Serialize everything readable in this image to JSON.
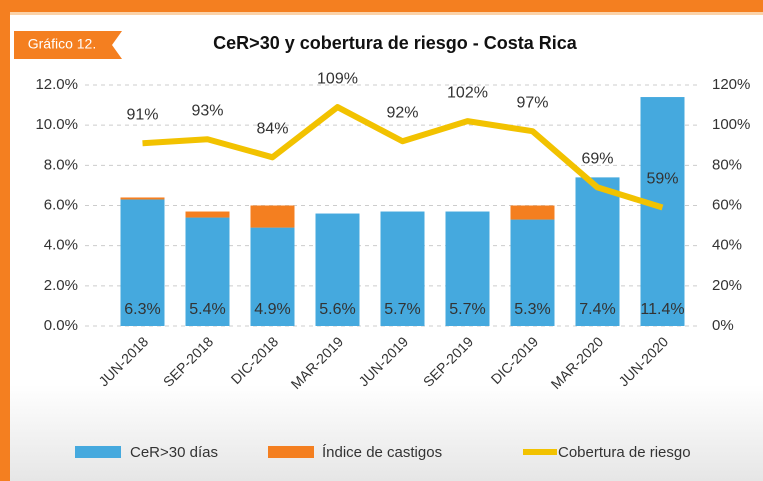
{
  "chart_data": {
    "type": "bar_line",
    "tag": "Gráfico 12.",
    "title": "CeR>30 y cobertura de riesgo - Costa Rica",
    "categories": [
      "JUN-2018",
      "SEP-2018",
      "DIC-2018",
      "MAR-2019",
      "JUN-2019",
      "SEP-2019",
      "DIC-2019",
      "MAR-2020",
      "JUN-2020"
    ],
    "series": [
      {
        "name": "CeR>30 días",
        "color": "#45a9de",
        "kind": "bar",
        "values": [
          6.3,
          5.4,
          4.9,
          5.6,
          5.7,
          5.7,
          5.3,
          7.4,
          11.4
        ],
        "value_labels": [
          "6.3%",
          "5.4%",
          "4.9%",
          "5.6%",
          "5.7%",
          "5.7%",
          "5.3%",
          "7.4%",
          "11.4%"
        ]
      },
      {
        "name": "Índice de castigos",
        "color": "#f47f20",
        "kind": "bar",
        "values": [
          0.1,
          0.3,
          1.1,
          0,
          0,
          0,
          0.7,
          0,
          0
        ]
      },
      {
        "name": "Cobertura de riesgo",
        "color": "#f2c200",
        "kind": "line",
        "axis": "y2",
        "values": [
          91,
          93,
          84,
          109,
          92,
          102,
          97,
          69,
          59
        ],
        "value_labels": [
          "91%",
          "93%",
          "84%",
          "109%",
          "92%",
          "102%",
          "97%",
          "69%",
          "59%"
        ]
      }
    ],
    "ylim": [
      0,
      12
    ],
    "yticks": [
      {
        "value": 0,
        "label": "0.0%"
      },
      {
        "value": 2,
        "label": "2.0%"
      },
      {
        "value": 4,
        "label": "4.0%"
      },
      {
        "value": 6,
        "label": "6.0%"
      },
      {
        "value": 8,
        "label": "8.0%"
      },
      {
        "value": 10,
        "label": "10.0%"
      },
      {
        "value": 12,
        "label": "12.0%"
      }
    ],
    "y2lim": [
      0,
      120
    ],
    "y2ticks": [
      {
        "value": 0,
        "label": "0%"
      },
      {
        "value": 20,
        "label": "20%"
      },
      {
        "value": 40,
        "label": "40%"
      },
      {
        "value": 60,
        "label": "60%"
      },
      {
        "value": 80,
        "label": "80%"
      },
      {
        "value": 100,
        "label": "100%"
      },
      {
        "value": 120,
        "label": "120%"
      }
    ],
    "grid": true
  }
}
